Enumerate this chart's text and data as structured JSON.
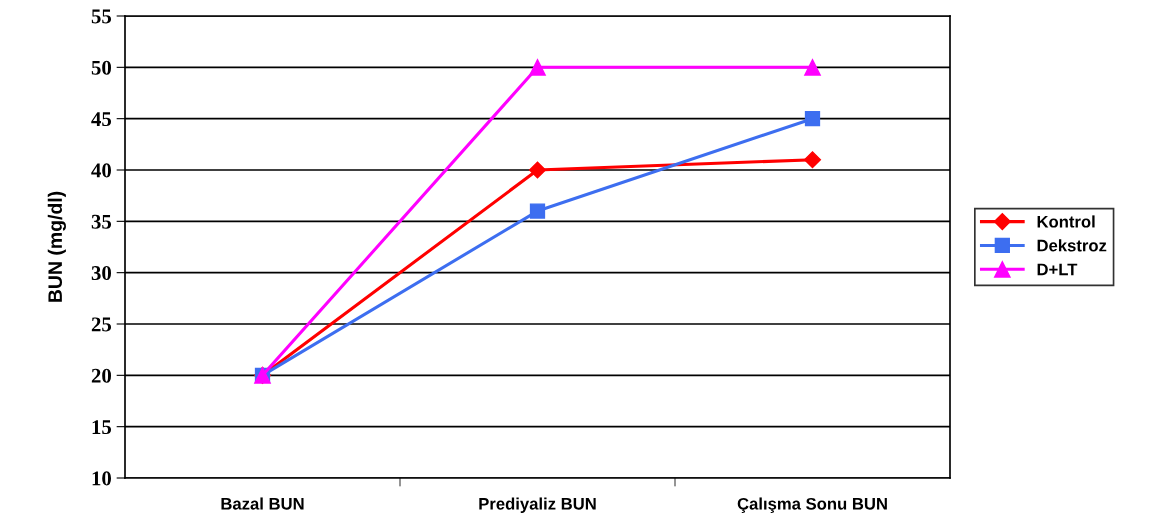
{
  "chart_data": {
    "type": "line",
    "ylabel": "BUN (mg/dl)",
    "categories": [
      "Bazal BUN",
      "Prediyaliz BUN",
      "Çalışma Sonu BUN"
    ],
    "series": [
      {
        "name": "Kontrol",
        "color": "#ff0000",
        "marker": "diamond",
        "values": [
          20,
          40,
          41
        ]
      },
      {
        "name": "Dekstroz",
        "color": "#3d6ef0",
        "marker": "square",
        "values": [
          20,
          36,
          45
        ]
      },
      {
        "name": "D+LT",
        "color": "#ff00ff",
        "marker": "triangle",
        "values": [
          20,
          50,
          50
        ]
      }
    ],
    "ylim": [
      10,
      55
    ],
    "yticks": [
      10,
      15,
      20,
      25,
      30,
      35,
      40,
      45,
      50,
      55
    ],
    "grid": "y",
    "legend": "right",
    "line_style": "solid"
  }
}
